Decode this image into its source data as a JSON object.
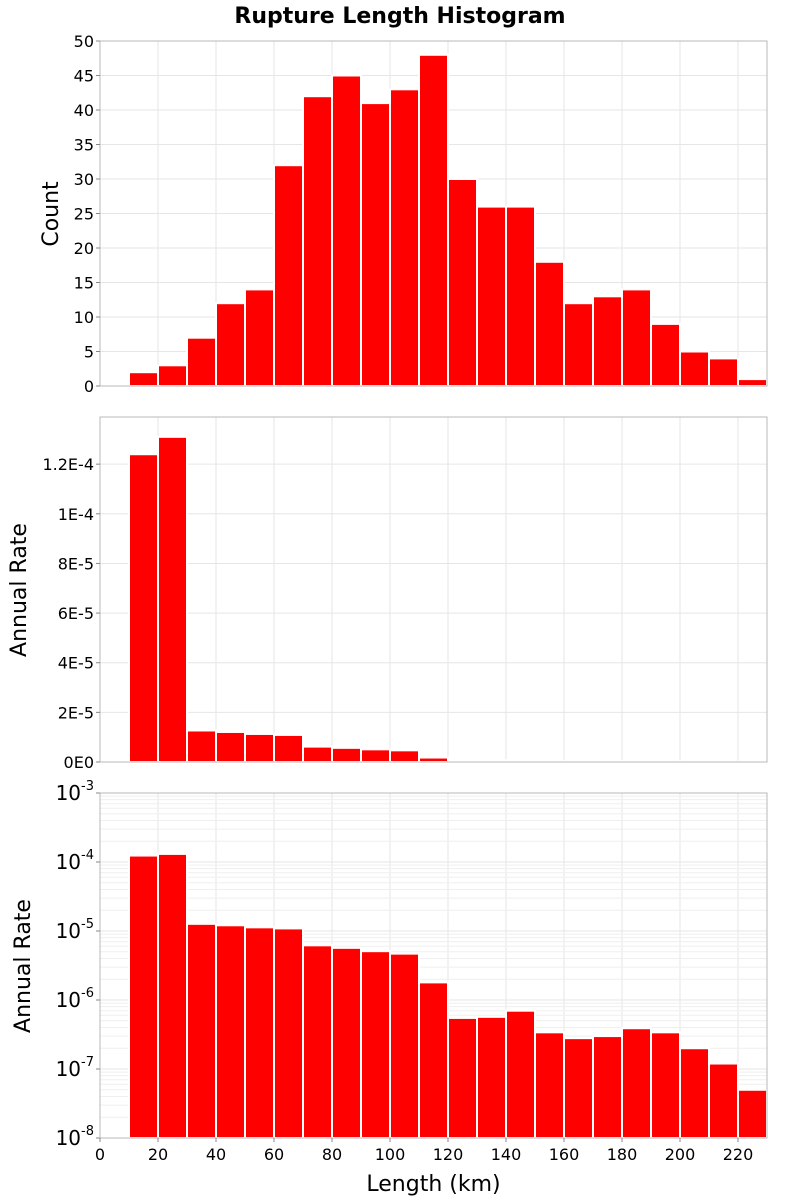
{
  "title": "Rupture Length Histogram",
  "colors": {
    "bar": "#ff0000",
    "frame": "#b8b8b8",
    "grid": "#e6e6e6"
  },
  "chart_data": [
    {
      "type": "bar",
      "ylabel": "Count",
      "yscale": "linear",
      "ylim": [
        0,
        50
      ],
      "yticks": [
        0,
        5,
        10,
        15,
        20,
        25,
        30,
        35,
        40,
        45,
        50
      ],
      "yticklabels": [
        "0",
        "5",
        "10",
        "15",
        "20",
        "25",
        "30",
        "35",
        "40",
        "45",
        "50"
      ],
      "xlim": [
        0,
        230
      ],
      "bin_width": 10,
      "bin_starts": [
        10,
        20,
        30,
        40,
        50,
        60,
        70,
        80,
        90,
        100,
        110,
        120,
        130,
        140,
        150,
        160,
        170,
        180,
        190,
        200,
        210,
        220
      ],
      "values": [
        2,
        3,
        7,
        12,
        14,
        32,
        42,
        45,
        41,
        43,
        48,
        30,
        26,
        26,
        18,
        12,
        13,
        14,
        9,
        5,
        4,
        1
      ],
      "grid": true
    },
    {
      "type": "bar",
      "ylabel": "Annual Rate",
      "yscale": "linear",
      "ylim": [
        0,
        0.000139
      ],
      "yticks": [
        0,
        2e-05,
        4e-05,
        6e-05,
        8e-05,
        0.0001,
        0.00012
      ],
      "yticklabels": [
        "0E0",
        "2E-5",
        "4E-5",
        "6E-5",
        "8E-5",
        "1E-4",
        "1.2E-4"
      ],
      "xlim": [
        0,
        230
      ],
      "bin_width": 10,
      "bin_starts": [
        10,
        20,
        30,
        40,
        50,
        60,
        70,
        80,
        90,
        100,
        110,
        120,
        130,
        140,
        150,
        160,
        170,
        180,
        190,
        200,
        210,
        220
      ],
      "values": [
        0.000124,
        0.000131,
        1.27e-05,
        1.21e-05,
        1.13e-05,
        1.09e-05,
        6.2e-06,
        5.7e-06,
        5.1e-06,
        4.7e-06,
        1.8e-06,
        5.5e-07,
        5.7e-07,
        7e-07,
        3.4e-07,
        2.8e-07,
        3e-07,
        3.9e-07,
        3.4e-07,
        2e-07,
        1.2e-07,
        5e-08
      ],
      "grid": true
    },
    {
      "type": "bar",
      "ylabel": "Annual Rate",
      "xlabel": "Length (km)",
      "yscale": "log",
      "ylim": [
        1e-08,
        0.001
      ],
      "yticks": [
        1e-08,
        1e-07,
        1e-06,
        1e-05,
        0.0001,
        0.001
      ],
      "yticklabels": [
        {
          "base": "10",
          "exp": "-8"
        },
        {
          "base": "10",
          "exp": "-7"
        },
        {
          "base": "10",
          "exp": "-6"
        },
        {
          "base": "10",
          "exp": "-5"
        },
        {
          "base": "10",
          "exp": "-4"
        },
        {
          "base": "10",
          "exp": "-3"
        }
      ],
      "xlim": [
        0,
        230
      ],
      "xticks": [
        0,
        20,
        40,
        60,
        80,
        100,
        120,
        140,
        160,
        180,
        200,
        220
      ],
      "xticklabels": [
        "0",
        "20",
        "40",
        "60",
        "80",
        "100",
        "120",
        "140",
        "160",
        "180",
        "200",
        "220"
      ],
      "bin_width": 10,
      "bin_starts": [
        10,
        20,
        30,
        40,
        50,
        60,
        70,
        80,
        90,
        100,
        110,
        120,
        130,
        140,
        150,
        160,
        170,
        180,
        190,
        200,
        210,
        220
      ],
      "values": [
        0.000124,
        0.000131,
        1.27e-05,
        1.21e-05,
        1.13e-05,
        1.09e-05,
        6.2e-06,
        5.7e-06,
        5.1e-06,
        4.7e-06,
        1.8e-06,
        5.5e-07,
        5.7e-07,
        7e-07,
        3.4e-07,
        2.8e-07,
        3e-07,
        3.9e-07,
        3.4e-07,
        2e-07,
        1.2e-07,
        5e-08
      ],
      "grid": true
    }
  ]
}
